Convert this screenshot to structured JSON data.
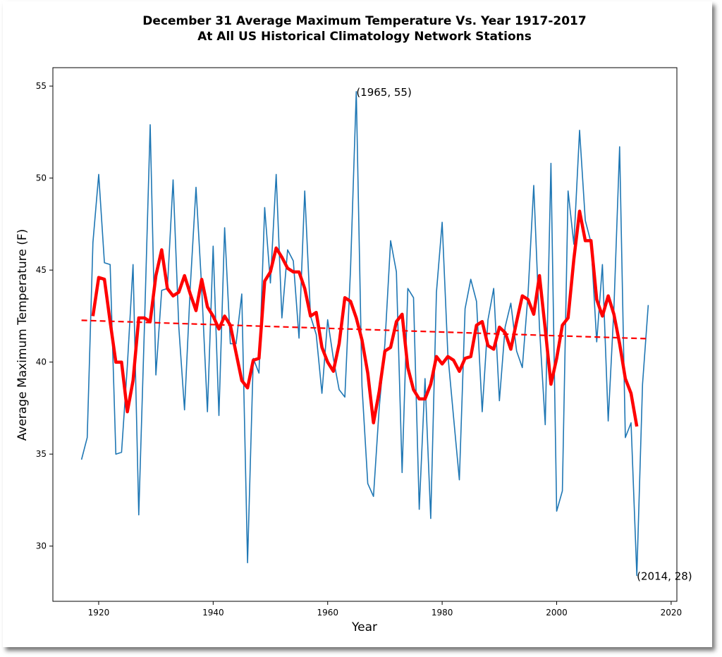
{
  "chart_data": {
    "type": "line",
    "title_line1": "December 31 Average Maximum Temperature Vs. Year 1917-2017",
    "title_line2": "At All US Historical Climatology Network Stations",
    "xlabel": "Year",
    "ylabel": "Average Maximum Temperature (F)",
    "xlim": [
      1912,
      2021
    ],
    "ylim": [
      27,
      56
    ],
    "x_ticks": [
      1920,
      1940,
      1960,
      1980,
      2000,
      2020
    ],
    "y_ticks": [
      30,
      35,
      40,
      45,
      50,
      55
    ],
    "grid": false,
    "legend": "none",
    "colors": {
      "raw": "#1f77b4",
      "smoothed": "#ff0000",
      "trend": "#ff0000"
    },
    "series": [
      {
        "role": "raw",
        "x": [
          1917,
          1918,
          1919,
          1920,
          1921,
          1922,
          1923,
          1924,
          1925,
          1926,
          1927,
          1928,
          1929,
          1930,
          1931,
          1932,
          1933,
          1934,
          1935,
          1936,
          1937,
          1938,
          1939,
          1940,
          1941,
          1942,
          1943,
          1944,
          1945,
          1946,
          1947,
          1948,
          1949,
          1950,
          1951,
          1952,
          1953,
          1954,
          1955,
          1956,
          1957,
          1958,
          1959,
          1960,
          1961,
          1962,
          1963,
          1964,
          1965,
          1966,
          1967,
          1968,
          1969,
          1970,
          1971,
          1972,
          1973,
          1974,
          1975,
          1976,
          1977,
          1978,
          1979,
          1980,
          1981,
          1982,
          1983,
          1984,
          1985,
          1986,
          1987,
          1988,
          1989,
          1990,
          1991,
          1992,
          1993,
          1994,
          1995,
          1996,
          1997,
          1998,
          1999,
          2000,
          2001,
          2002,
          2003,
          2004,
          2005,
          2006,
          2007,
          2008,
          2009,
          2010,
          2011,
          2012,
          2013,
          2014,
          2015,
          2016
        ],
        "y": [
          34.7,
          35.9,
          46.5,
          50.2,
          45.4,
          45.3,
          35.0,
          35.1,
          39.8,
          45.3,
          31.7,
          42.0,
          52.9,
          39.3,
          43.9,
          44.0,
          49.9,
          41.9,
          37.4,
          44.1,
          49.5,
          44.0,
          37.3,
          46.3,
          37.1,
          47.3,
          41.0,
          41.0,
          43.7,
          29.1,
          40.2,
          39.4,
          48.4,
          44.3,
          50.2,
          42.4,
          46.1,
          45.5,
          41.3,
          49.3,
          42.5,
          41.5,
          38.3,
          42.3,
          40.2,
          38.5,
          38.1,
          45.1,
          54.7,
          38.7,
          33.4,
          32.7,
          37.5,
          41.0,
          46.6,
          44.9,
          34.0,
          44.0,
          43.5,
          32.0,
          39.1,
          31.5,
          43.8,
          47.6,
          40.4,
          37.0,
          33.6,
          42.9,
          44.5,
          43.3,
          37.3,
          42.3,
          44.0,
          37.9,
          41.9,
          43.2,
          40.6,
          39.7,
          43.7,
          49.6,
          41.9,
          36.6,
          50.8,
          31.9,
          33.0,
          49.3,
          46.4,
          52.6,
          47.7,
          46.5,
          41.1,
          45.3,
          36.8,
          42.9,
          51.7,
          35.9,
          36.7,
          28.4,
          38.8,
          43.1
        ]
      },
      {
        "role": "smoothed",
        "x": [
          1919,
          1920,
          1921,
          1922,
          1923,
          1924,
          1925,
          1926,
          1927,
          1928,
          1929,
          1930,
          1931,
          1932,
          1933,
          1934,
          1935,
          1936,
          1937,
          1938,
          1939,
          1940,
          1941,
          1942,
          1943,
          1944,
          1945,
          1946,
          1947,
          1948,
          1949,
          1950,
          1951,
          1952,
          1953,
          1954,
          1955,
          1956,
          1957,
          1958,
          1959,
          1960,
          1961,
          1962,
          1963,
          1964,
          1965,
          1966,
          1967,
          1968,
          1969,
          1970,
          1971,
          1972,
          1973,
          1974,
          1975,
          1976,
          1977,
          1978,
          1979,
          1980,
          1981,
          1982,
          1983,
          1984,
          1985,
          1986,
          1987,
          1988,
          1989,
          1990,
          1991,
          1992,
          1993,
          1994,
          1995,
          1996,
          1997,
          1998,
          1999,
          2000,
          2001,
          2002,
          2003,
          2004,
          2005,
          2006,
          2007,
          2008,
          2009,
          2010,
          2011,
          2012,
          2013,
          2014
        ],
        "y": [
          42.5,
          44.6,
          44.5,
          42.2,
          40.0,
          40.0,
          37.3,
          39.0,
          42.4,
          42.4,
          42.2,
          44.7,
          46.1,
          44.0,
          43.6,
          43.8,
          44.7,
          43.7,
          42.8,
          44.5,
          43.0,
          42.5,
          41.8,
          42.5,
          42.0,
          40.5,
          39.0,
          38.6,
          40.1,
          40.2,
          44.4,
          44.9,
          46.2,
          45.7,
          45.1,
          44.9,
          44.9,
          44.0,
          42.5,
          42.7,
          40.8,
          40.0,
          39.5,
          41.0,
          43.5,
          43.3,
          42.4,
          41.2,
          39.4,
          36.7,
          38.4,
          40.6,
          40.8,
          42.2,
          42.6,
          39.7,
          38.5,
          38.0,
          38.0,
          38.8,
          40.3,
          39.9,
          40.3,
          40.1,
          39.5,
          40.2,
          40.3,
          42.0,
          42.2,
          40.9,
          40.7,
          41.9,
          41.6,
          40.7,
          42.2,
          43.6,
          43.4,
          42.6,
          44.7,
          41.8,
          38.8,
          40.2,
          42.0,
          42.4,
          45.6,
          48.2,
          46.6,
          46.6,
          43.4,
          42.5,
          43.6,
          42.6,
          41.0,
          39.1,
          38.3,
          36.5
        ]
      },
      {
        "role": "trend",
        "x": [
          1917,
          2016
        ],
        "y": [
          42.27,
          41.27
        ]
      }
    ],
    "annotations": [
      {
        "text": "(1965, 55)",
        "x": 1965,
        "y": 54.7
      },
      {
        "text": "(2014, 28)",
        "x": 2014,
        "y": 28.4
      }
    ]
  }
}
